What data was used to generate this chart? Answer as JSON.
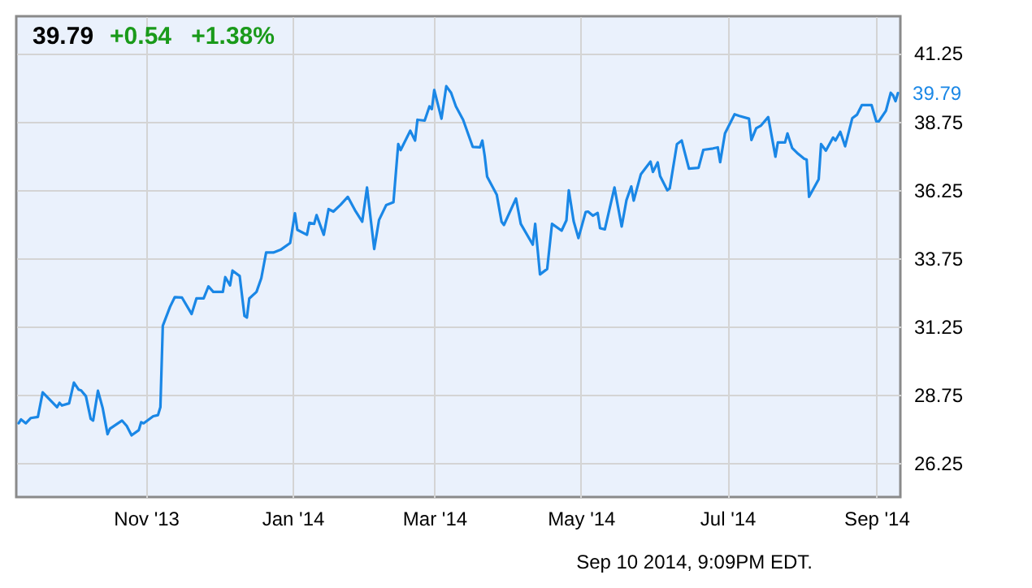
{
  "chart_data": {
    "type": "line",
    "title": "39.79",
    "subtitle": "+0.54 +1.38%",
    "x": [
      "2013-09-09",
      "2013-09-10",
      "2013-09-12",
      "2013-09-14",
      "2013-09-17",
      "2013-09-19",
      "2013-09-25",
      "2013-09-26",
      "2013-09-27",
      "2013-09-30",
      "2013-10-02",
      "2013-10-04",
      "2013-10-05",
      "2013-10-07",
      "2013-10-09",
      "2013-10-10",
      "2013-10-12",
      "2013-10-14",
      "2013-10-16",
      "2013-10-17",
      "2013-10-22",
      "2013-10-24",
      "2013-10-26",
      "2013-10-29",
      "2013-10-30",
      "2013-10-31",
      "2013-11-04",
      "2013-11-06",
      "2013-11-07",
      "2013-11-08",
      "2013-11-11",
      "2013-11-13",
      "2013-11-16",
      "2013-11-20",
      "2013-11-22",
      "2013-11-25",
      "2013-11-27",
      "2013-11-29",
      "2013-12-03",
      "2013-12-04",
      "2013-12-06",
      "2013-12-07",
      "2013-12-10",
      "2013-12-12",
      "2013-12-13",
      "2013-12-14",
      "2013-12-17",
      "2013-12-19",
      "2013-12-21",
      "2013-12-24",
      "2013-12-27",
      "2013-12-31",
      "2014-01-02",
      "2014-01-03",
      "2014-01-07",
      "2014-01-08",
      "2014-01-10",
      "2014-01-11",
      "2014-01-14",
      "2014-01-16",
      "2014-01-18",
      "2014-01-21",
      "2014-01-24",
      "2014-01-27",
      "2014-01-30",
      "2014-02-01",
      "2014-02-04",
      "2014-02-06",
      "2014-02-09",
      "2014-02-12",
      "2014-02-14",
      "2014-02-15",
      "2014-02-19",
      "2014-02-21",
      "2014-02-22",
      "2014-02-25",
      "2014-02-27",
      "2014-02-28",
      "2014-03-01",
      "2014-03-04",
      "2014-03-06",
      "2014-03-08",
      "2014-03-10",
      "2014-03-13",
      "2014-03-17",
      "2014-03-20",
      "2014-03-21",
      "2014-03-22",
      "2014-03-23",
      "2014-03-27",
      "2014-03-29",
      "2014-03-30",
      "2014-04-04",
      "2014-04-06",
      "2014-04-11",
      "2014-04-12",
      "2014-04-14",
      "2014-04-17",
      "2014-04-19",
      "2014-04-23",
      "2014-04-25",
      "2014-04-26",
      "2014-04-28",
      "2014-04-30",
      "2014-05-03",
      "2014-05-04",
      "2014-05-06",
      "2014-05-08",
      "2014-05-09",
      "2014-05-11",
      "2014-05-15",
      "2014-05-18",
      "2014-05-20",
      "2014-05-22",
      "2014-05-23",
      "2014-05-26",
      "2014-05-30",
      "2014-05-31",
      "2014-06-02",
      "2014-06-03",
      "2014-06-06",
      "2014-06-07",
      "2014-06-10",
      "2014-06-12",
      "2014-06-13",
      "2014-06-15",
      "2014-06-19",
      "2014-06-21",
      "2014-06-25",
      "2014-06-27",
      "2014-06-28",
      "2014-06-30",
      "2014-07-04",
      "2014-07-06",
      "2014-07-10",
      "2014-07-11",
      "2014-07-13",
      "2014-07-15",
      "2014-07-18",
      "2014-07-21",
      "2014-07-22",
      "2014-07-25",
      "2014-07-26",
      "2014-07-28",
      "2014-07-30",
      "2014-08-02",
      "2014-08-03",
      "2014-08-04",
      "2014-08-08",
      "2014-08-09",
      "2014-08-11",
      "2014-08-14",
      "2014-08-15",
      "2014-08-17",
      "2014-08-19",
      "2014-08-22",
      "2014-08-24",
      "2014-08-26",
      "2014-08-30",
      "2014-09-01",
      "2014-09-02",
      "2014-09-05",
      "2014-09-07",
      "2014-09-08",
      "2014-09-09",
      "2014-09-10"
    ],
    "series": [
      {
        "color": "#1a87e6",
        "values": [
          27.7,
          27.84,
          27.7,
          27.89,
          27.93,
          28.83,
          28.29,
          28.45,
          28.35,
          28.43,
          29.19,
          28.93,
          28.9,
          28.69,
          27.86,
          27.8,
          28.89,
          28.25,
          27.3,
          27.5,
          27.8,
          27.6,
          27.26,
          27.45,
          27.74,
          27.7,
          27.96,
          28.0,
          28.29,
          31.27,
          31.96,
          32.32,
          32.3,
          31.7,
          32.27,
          32.27,
          32.71,
          32.51,
          32.51,
          33.05,
          32.75,
          33.29,
          33.09,
          31.63,
          31.57,
          32.27,
          32.51,
          33.01,
          33.95,
          33.95,
          34.05,
          34.3,
          35.39,
          34.78,
          34.6,
          35.04,
          35.0,
          35.32,
          34.6,
          35.54,
          35.45,
          35.7,
          35.99,
          35.5,
          35.08,
          36.33,
          34.08,
          35.14,
          35.69,
          35.79,
          37.92,
          37.7,
          38.41,
          38.05,
          38.81,
          38.78,
          39.3,
          39.2,
          39.9,
          38.85,
          40.04,
          39.8,
          39.3,
          38.81,
          37.82,
          37.8,
          38.05,
          37.48,
          36.73,
          36.07,
          35.08,
          34.96,
          35.93,
          35.0,
          34.24,
          35.0,
          33.15,
          33.35,
          35.0,
          34.75,
          35.13,
          36.23,
          35.1,
          34.48,
          35.43,
          35.45,
          35.3,
          35.4,
          34.84,
          34.8,
          36.33,
          34.9,
          35.87,
          36.37,
          35.85,
          36.82,
          37.28,
          36.9,
          37.25,
          36.75,
          36.23,
          36.3,
          37.92,
          38.05,
          37.7,
          37.02,
          37.05,
          37.71,
          37.76,
          37.8,
          37.26,
          38.31,
          39.01,
          38.95,
          38.85,
          38.07,
          38.5,
          38.6,
          38.91,
          37.46,
          37.98,
          37.98,
          38.31,
          37.77,
          37.6,
          37.38,
          37.35,
          35.99,
          36.63,
          37.92,
          37.68,
          38.16,
          38.05,
          38.37,
          37.84,
          38.87,
          39.0,
          39.35,
          39.35,
          38.75,
          38.75,
          39.14,
          39.8,
          39.7,
          39.49,
          39.79
        ]
      }
    ],
    "xlim": [
      "2013-09-08",
      "2014-09-11"
    ],
    "xticks": [
      {
        "value": "2013-11-01",
        "label": "Nov '13"
      },
      {
        "value": "2014-01-01",
        "label": "Jan '14"
      },
      {
        "value": "2014-03-01",
        "label": "Mar '14"
      },
      {
        "value": "2014-05-01",
        "label": "May '14"
      },
      {
        "value": "2014-07-01",
        "label": "Jul '14"
      },
      {
        "value": "2014-09-01",
        "label": "Sep '14"
      }
    ],
    "ylim": [
      25,
      42.6
    ],
    "yticks": [
      26.25,
      28.75,
      31.25,
      33.75,
      36.25,
      38.75,
      41.25
    ],
    "grid": true,
    "marker": "none",
    "line_style": "solid",
    "annotations": [
      {
        "text": "39.79",
        "x": "2014-09-10",
        "y": 39.79
      },
      "Sep 10 2014, 9:09PM EDT."
    ]
  }
}
